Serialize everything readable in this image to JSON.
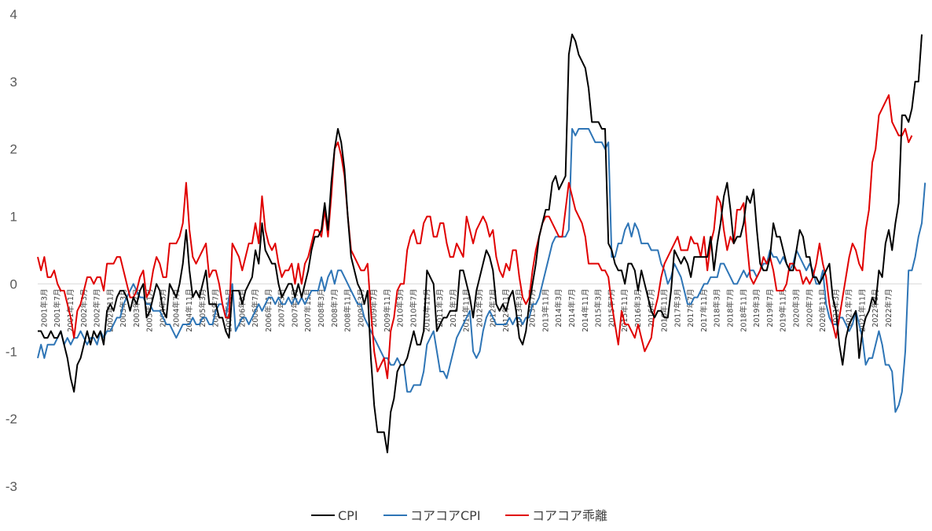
{
  "chart_data": {
    "type": "line",
    "title": "",
    "xlabel": "",
    "ylabel": "",
    "ylim": [
      -3,
      4
    ],
    "yticks": [
      "4",
      "3",
      "2",
      "1",
      "0",
      "-1",
      "-2",
      "-3"
    ],
    "grid": false,
    "legend_position": "bottom",
    "x_start_label": "2001年1月",
    "x_labels": [
      "2001年3月",
      "2001年7月",
      "2001年11月",
      "2002年3月",
      "2002年7月",
      "2002年11月",
      "2003年3月",
      "2003年7月",
      "2003年11月",
      "2004年3月",
      "2004年7月",
      "2004年11月",
      "2005年3月",
      "2005年7月",
      "2005年11月",
      "2006年3月",
      "2006年7月",
      "2006年11月",
      "2007年3月",
      "2007年7月",
      "2007年11月",
      "2008年3月",
      "2008年7月",
      "2008年11月",
      "2009年3月",
      "2009年7月",
      "2009年11月",
      "2010年3月",
      "2010年7月",
      "2010年11月",
      "2011年3月",
      "2011年7月",
      "2011年11月",
      "2012年3月",
      "2012年7月",
      "2012年11月",
      "2013年3月",
      "2013年7月",
      "2013年11月",
      "2014年3月",
      "2014年7月",
      "2014年11月",
      "2015年3月",
      "2015年7月",
      "2015年11月",
      "2016年3月",
      "2016年7月",
      "2016年11月",
      "2017年3月",
      "2017年7月",
      "2017年11月",
      "2018年3月",
      "2018年7月",
      "2018年11月",
      "2019年3月",
      "2019年7月",
      "2019年11月",
      "2020年3月",
      "2020年7月",
      "2020年11月",
      "2021年3月",
      "2021年7月",
      "2021年11月",
      "2022年3月",
      "2022年7月"
    ],
    "series": [
      {
        "name": "CPI",
        "color": "#000000",
        "values": [
          -0.7,
          -0.7,
          -0.8,
          -0.8,
          -0.7,
          -0.8,
          -0.8,
          -0.7,
          -0.9,
          -1.1,
          -1.4,
          -1.6,
          -1.2,
          -1.1,
          -0.9,
          -0.7,
          -0.9,
          -0.7,
          -0.8,
          -0.7,
          -0.9,
          -0.4,
          -0.3,
          -0.4,
          -0.2,
          -0.1,
          -0.1,
          -0.2,
          -0.4,
          -0.2,
          -0.3,
          -0.1,
          0.0,
          -0.5,
          -0.4,
          -0.2,
          0.0,
          -0.1,
          -0.4,
          -0.5,
          0.0,
          -0.1,
          -0.2,
          0.0,
          0.3,
          0.8,
          0.2,
          -0.2,
          -0.1,
          -0.2,
          0.0,
          0.2,
          -0.3,
          -0.3,
          -0.3,
          -0.5,
          -0.5,
          -0.7,
          -0.8,
          -0.1,
          -0.1,
          -0.1,
          -0.3,
          -0.1,
          0.0,
          0.1,
          0.5,
          0.3,
          0.9,
          0.5,
          0.4,
          0.3,
          0.3,
          0.0,
          -0.2,
          -0.1,
          0.0,
          0.0,
          -0.2,
          0.0,
          -0.2,
          0.0,
          0.2,
          0.5,
          0.7,
          0.7,
          0.8,
          1.2,
          0.8,
          1.5,
          2.0,
          2.3,
          2.1,
          1.7,
          1.0,
          0.4,
          0.2,
          0.0,
          -0.1,
          -0.3,
          -0.1,
          -1.1,
          -1.8,
          -2.2,
          -2.2,
          -2.2,
          -2.5,
          -1.9,
          -1.7,
          -1.3,
          -1.2,
          -1.2,
          -1.1,
          -0.9,
          -0.7,
          -0.9,
          -0.9,
          -0.7,
          0.2,
          0.1,
          0.0,
          -0.7,
          -0.6,
          -0.5,
          -0.5,
          -0.4,
          -0.4,
          -0.4,
          0.2,
          0.2,
          0.0,
          -0.2,
          -0.5,
          -0.1,
          0.1,
          0.3,
          0.5,
          0.4,
          0.2,
          -0.3,
          -0.4,
          -0.3,
          -0.4,
          -0.2,
          -0.1,
          -0.4,
          -0.8,
          -0.9,
          -0.7,
          -0.3,
          0.0,
          0.3,
          0.7,
          0.9,
          1.1,
          1.1,
          1.5,
          1.6,
          1.4,
          1.5,
          1.6,
          3.4,
          3.7,
          3.6,
          3.4,
          3.3,
          3.2,
          2.9,
          2.4,
          2.4,
          2.4,
          2.3,
          2.3,
          0.6,
          0.5,
          0.3,
          0.2,
          0.2,
          0.0,
          0.3,
          0.3,
          0.2,
          -0.1,
          0.2,
          0.0,
          -0.2,
          -0.4,
          -0.5,
          -0.4,
          -0.4,
          -0.5,
          -0.5,
          -0.1,
          0.5,
          0.4,
          0.3,
          0.4,
          0.3,
          0.1,
          0.4,
          0.4,
          0.4,
          0.4,
          0.4,
          0.7,
          0.2,
          0.6,
          0.9,
          1.3,
          1.5,
          1.1,
          0.6,
          0.7,
          0.7,
          0.9,
          1.3,
          1.2,
          1.4,
          0.8,
          0.3,
          0.2,
          0.2,
          0.4,
          0.9,
          0.7,
          0.7,
          0.5,
          0.3,
          0.2,
          0.2,
          0.5,
          0.8,
          0.7,
          0.4,
          0.4,
          0.1,
          0.1,
          0.0,
          0.1,
          0.2,
          0.3,
          -0.2,
          -0.4,
          -0.9,
          -1.2,
          -0.8,
          -0.6,
          -0.5,
          -0.4,
          -1.1,
          -0.7,
          -0.5,
          -0.4,
          -0.2,
          -0.3,
          0.2,
          0.1,
          0.6,
          0.8,
          0.5,
          0.9,
          1.2,
          2.5,
          2.5,
          2.4,
          2.6,
          3.0,
          3.0,
          3.7
        ]
      },
      {
        "name": "コアコアCPI",
        "color": "#2e75b6",
        "values": [
          -1.1,
          -0.9,
          -1.1,
          -0.9,
          -0.9,
          -0.9,
          -0.8,
          -0.7,
          -0.9,
          -0.8,
          -0.9,
          -0.8,
          -0.8,
          -0.7,
          -0.8,
          -0.9,
          -0.8,
          -0.8,
          -0.9,
          -0.7,
          -0.8,
          -0.7,
          -0.7,
          -0.6,
          -0.5,
          -0.5,
          -0.3,
          -0.2,
          -0.1,
          0.0,
          -0.1,
          -0.2,
          -0.2,
          -0.3,
          -0.3,
          -0.4,
          -0.4,
          -0.4,
          -0.5,
          -0.6,
          -0.6,
          -0.7,
          -0.8,
          -0.7,
          -0.6,
          -0.6,
          -0.6,
          -0.5,
          -0.6,
          -0.6,
          -0.5,
          -0.5,
          -0.6,
          -0.6,
          -0.4,
          -0.3,
          -0.3,
          -0.5,
          -0.2,
          0.0,
          -0.7,
          -0.6,
          -0.5,
          -0.5,
          -0.6,
          -0.5,
          -0.4,
          -0.3,
          -0.4,
          -0.3,
          -0.2,
          -0.2,
          -0.3,
          -0.2,
          -0.3,
          -0.3,
          -0.2,
          -0.3,
          -0.2,
          -0.3,
          -0.2,
          -0.3,
          -0.2,
          -0.1,
          -0.1,
          -0.1,
          0.1,
          -0.1,
          0.1,
          0.2,
          0.0,
          0.2,
          0.2,
          0.1,
          0.0,
          -0.1,
          -0.2,
          -0.3,
          -0.3,
          -0.5,
          -0.6,
          -0.7,
          -0.8,
          -0.9,
          -1.0,
          -1.1,
          -1.1,
          -1.2,
          -1.2,
          -1.1,
          -1.2,
          -1.2,
          -1.6,
          -1.6,
          -1.5,
          -1.5,
          -1.5,
          -1.3,
          -0.9,
          -0.8,
          -0.7,
          -1.0,
          -1.3,
          -1.3,
          -1.4,
          -1.2,
          -1.0,
          -0.8,
          -0.7,
          -0.6,
          -0.5,
          -0.4,
          -1.0,
          -1.1,
          -1.0,
          -0.7,
          -0.5,
          -0.4,
          -0.5,
          -0.6,
          -0.6,
          -0.6,
          -0.6,
          -0.5,
          -0.6,
          -0.5,
          -0.5,
          -0.6,
          -0.5,
          -0.5,
          -0.3,
          -0.3,
          -0.2,
          0.0,
          0.2,
          0.4,
          0.6,
          0.7,
          0.7,
          0.7,
          0.7,
          0.8,
          2.3,
          2.2,
          2.3,
          2.3,
          2.3,
          2.3,
          2.2,
          2.1,
          2.1,
          2.1,
          2.0,
          2.1,
          0.4,
          0.4,
          0.6,
          0.6,
          0.8,
          0.9,
          0.7,
          0.9,
          0.8,
          0.6,
          0.6,
          0.6,
          0.5,
          0.5,
          0.5,
          0.3,
          0.2,
          0.0,
          0.1,
          0.3,
          0.2,
          0.1,
          -0.1,
          -0.3,
          -0.3,
          -0.2,
          -0.2,
          -0.1,
          0.0,
          0.0,
          0.1,
          0.1,
          0.1,
          0.3,
          0.3,
          0.2,
          0.1,
          0.0,
          0.0,
          0.1,
          0.2,
          0.1,
          0.2,
          0.2,
          0.1,
          0.2,
          0.3,
          0.3,
          0.5,
          0.4,
          0.4,
          0.3,
          0.4,
          0.3,
          0.2,
          0.3,
          0.5,
          0.4,
          0.3,
          0.2,
          0.3,
          0.2,
          0.0,
          0.0,
          0.2,
          -0.3,
          -0.5,
          -0.6,
          -0.6,
          -0.5,
          -0.5,
          -0.6,
          -0.7,
          -0.6,
          -0.4,
          -0.6,
          -0.8,
          -1.2,
          -1.1,
          -1.1,
          -0.9,
          -0.7,
          -0.9,
          -1.2,
          -1.2,
          -1.3,
          -1.9,
          -1.8,
          -1.6,
          -1.0,
          0.2,
          0.2,
          0.4,
          0.7,
          0.9,
          1.5
        ]
      },
      {
        "name": "コアコア乖離",
        "color": "#e00000",
        "values": [
          0.4,
          0.2,
          0.4,
          0.1,
          0.1,
          0.2,
          0.0,
          -0.1,
          -0.1,
          -0.3,
          -0.5,
          -0.8,
          -0.4,
          -0.3,
          -0.1,
          0.1,
          0.1,
          0.0,
          0.1,
          0.1,
          -0.1,
          0.3,
          0.3,
          0.3,
          0.4,
          0.4,
          0.2,
          0.0,
          -0.2,
          -0.2,
          -0.1,
          0.1,
          0.2,
          -0.2,
          -0.1,
          0.2,
          0.4,
          0.3,
          0.1,
          0.1,
          0.6,
          0.6,
          0.6,
          0.7,
          0.9,
          1.5,
          0.8,
          0.4,
          0.3,
          0.4,
          0.5,
          0.6,
          0.1,
          0.2,
          0.2,
          0.0,
          -0.3,
          -0.5,
          -0.5,
          0.6,
          0.5,
          0.4,
          0.2,
          0.4,
          0.6,
          0.6,
          0.9,
          0.6,
          1.3,
          0.8,
          0.6,
          0.5,
          0.6,
          0.3,
          0.1,
          0.2,
          0.2,
          0.3,
          0.0,
          0.3,
          0.0,
          0.3,
          0.4,
          0.6,
          0.8,
          0.8,
          0.7,
          1.1,
          0.7,
          1.3,
          2.0,
          2.1,
          1.9,
          1.6,
          1.0,
          0.5,
          0.4,
          0.3,
          0.2,
          0.2,
          0.3,
          -0.4,
          -1.0,
          -1.3,
          -1.2,
          -1.1,
          -1.4,
          -0.7,
          -0.5,
          -0.1,
          0.0,
          0.0,
          0.5,
          0.7,
          0.8,
          0.6,
          0.6,
          0.9,
          1.0,
          1.0,
          0.7,
          0.7,
          0.9,
          0.9,
          0.6,
          0.4,
          0.4,
          0.6,
          0.5,
          0.4,
          1.0,
          0.8,
          0.6,
          0.8,
          0.9,
          1.0,
          0.9,
          0.7,
          0.8,
          0.4,
          0.2,
          0.1,
          0.3,
          0.2,
          0.5,
          0.5,
          0.1,
          -0.2,
          -0.3,
          -0.2,
          0.2,
          0.5,
          0.7,
          0.9,
          1.0,
          1.0,
          0.9,
          0.8,
          0.7,
          0.7,
          1.1,
          1.5,
          1.3,
          1.1,
          1.0,
          0.9,
          0.7,
          0.3,
          0.3,
          0.3,
          0.3,
          0.2,
          0.2,
          0.1,
          -0.3,
          -0.6,
          -0.9,
          -0.4,
          -0.6,
          -0.6,
          -0.7,
          -0.8,
          -0.6,
          -0.8,
          -1.0,
          -0.9,
          -0.8,
          -0.4,
          -0.2,
          0.1,
          0.3,
          0.4,
          0.5,
          0.6,
          0.7,
          0.5,
          0.5,
          0.5,
          0.7,
          0.6,
          0.6,
          0.4,
          0.7,
          0.2,
          0.6,
          0.8,
          1.3,
          1.2,
          0.8,
          0.5,
          0.7,
          0.6,
          1.1,
          1.1,
          1.2,
          0.6,
          0.1,
          0.0,
          0.1,
          0.2,
          0.4,
          0.3,
          0.4,
          0.2,
          -0.1,
          -0.1,
          -0.1,
          0.0,
          0.3,
          0.3,
          0.2,
          0.2,
          0.0,
          0.1,
          0.0,
          0.1,
          0.3,
          0.6,
          0.3,
          0.1,
          -0.3,
          -0.6,
          -0.8,
          -0.5,
          -0.2,
          0.1,
          0.4,
          0.6,
          0.5,
          0.3,
          0.2,
          0.8,
          1.1,
          1.8,
          2.0,
          2.5,
          2.6,
          2.7,
          2.8,
          2.4,
          2.3,
          2.2,
          2.2,
          2.3,
          2.1,
          2.2
        ]
      }
    ]
  }
}
